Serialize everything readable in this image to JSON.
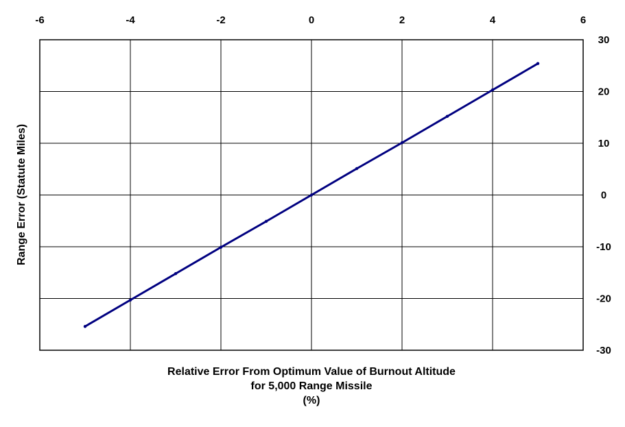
{
  "chart_data": {
    "type": "line",
    "title": "",
    "xlabel_lines": [
      "Relative Error From Optimum Value of Burnout Altitude",
      "for 5,000 Range Missile",
      "(%)"
    ],
    "ylabel": "Range Error (Statute Miles)",
    "xlim": [
      -6,
      6
    ],
    "ylim": [
      -30,
      30
    ],
    "x_ticks": [
      -6,
      -4,
      -2,
      0,
      2,
      4,
      6
    ],
    "y_ticks": [
      30,
      20,
      10,
      0,
      -10,
      -20,
      -30
    ],
    "x_tick_labels": [
      "-6",
      "-4",
      "-2",
      "0",
      "2",
      "4",
      "6"
    ],
    "y_tick_labels": [
      "30",
      "20",
      "10",
      "0",
      "-10",
      "-20",
      "-30"
    ],
    "x_axis_position": "top",
    "y_axis_position": "right",
    "grid": true,
    "series": [
      {
        "color": "#000080",
        "x": [
          -5,
          -4,
          -3,
          -2,
          -1,
          0,
          1,
          2,
          3,
          4,
          5
        ],
        "y": [
          -25.4,
          -20.3,
          -15.2,
          -10.1,
          -5.1,
          0,
          5.1,
          10.1,
          15.2,
          20.3,
          25.4
        ]
      }
    ]
  }
}
